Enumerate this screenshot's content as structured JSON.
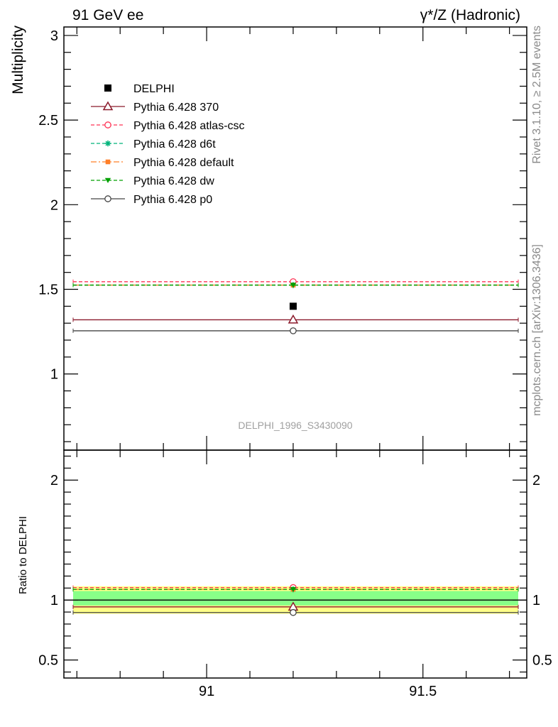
{
  "header": {
    "left": "91 GeV ee",
    "right": "γ*/Z (Hadronic)"
  },
  "side_text": {
    "rivet": "Rivet 3.1.10, ≥ 2.5M events",
    "mcplots": "mcplots.cern.ch [arXiv:1306.3436]"
  },
  "watermark": "DELPHI_1996_S3430090",
  "chart_data": [
    {
      "type": "scatter",
      "ylabel": "Multiplicity",
      "ylim": [
        0.55,
        3.05
      ],
      "y_ticks": [
        "1",
        "1.5",
        "2",
        "2.5",
        "3"
      ],
      "x": [
        91.2
      ],
      "xlim": [
        90.67,
        91.74
      ],
      "legend_position": "top-left",
      "data": {
        "name": "DELPHI",
        "y": 1.4,
        "color": "#000000"
      },
      "series": [
        {
          "name": "Pythia 6.428 370",
          "y": 1.32,
          "color": "#8b1a2b",
          "marker": "triangle-open",
          "dash": "solid"
        },
        {
          "name": "Pythia 6.428 atlas-csc",
          "y": 1.545,
          "color": "#ff3355",
          "marker": "circle-open",
          "dash": "dashed"
        },
        {
          "name": "Pythia 6.428 d6t",
          "y": 1.525,
          "color": "#00b37a",
          "marker": "star",
          "dash": "dashed"
        },
        {
          "name": "Pythia 6.428 default",
          "y": 1.525,
          "color": "#ff7f27",
          "marker": "square-filled",
          "dash": "dashdot"
        },
        {
          "name": "Pythia 6.428 dw",
          "y": 1.525,
          "color": "#00a000",
          "marker": "triangle-down-filled",
          "dash": "dashed"
        },
        {
          "name": "Pythia 6.428 p0",
          "y": 1.255,
          "color": "#444444",
          "marker": "circle-open",
          "dash": "solid"
        }
      ]
    },
    {
      "type": "scatter",
      "ylabel": "Ratio to DELPHI",
      "ylim": [
        0.35,
        2.25
      ],
      "y_ticks": [
        "0.5",
        "1",
        "2"
      ],
      "x_ticks": [
        "91",
        "91.5"
      ],
      "xlim": [
        90.67,
        91.74
      ],
      "bands": [
        {
          "lo": 0.885,
          "hi": 1.115,
          "color": "#ffff88"
        },
        {
          "lo": 0.955,
          "hi": 1.075,
          "color": "#88ff88"
        }
      ],
      "series": [
        {
          "name": "Pythia 6.428 370",
          "y": 0.943,
          "color": "#8b1a2b",
          "marker": "triangle-open",
          "dash": "solid"
        },
        {
          "name": "Pythia 6.428 atlas-csc",
          "y": 1.104,
          "color": "#ff3355",
          "marker": "circle-open",
          "dash": "dashed"
        },
        {
          "name": "Pythia 6.428 d6t",
          "y": 1.089,
          "color": "#00b37a",
          "marker": "star",
          "dash": "dashed"
        },
        {
          "name": "Pythia 6.428 default",
          "y": 1.089,
          "color": "#ff7f27",
          "marker": "square-filled",
          "dash": "dashdot"
        },
        {
          "name": "Pythia 6.428 dw",
          "y": 1.089,
          "color": "#00a000",
          "marker": "triangle-down-filled",
          "dash": "dashed"
        },
        {
          "name": "Pythia 6.428 p0",
          "y": 0.896,
          "color": "#444444",
          "marker": "circle-open",
          "dash": "solid"
        }
      ]
    }
  ]
}
